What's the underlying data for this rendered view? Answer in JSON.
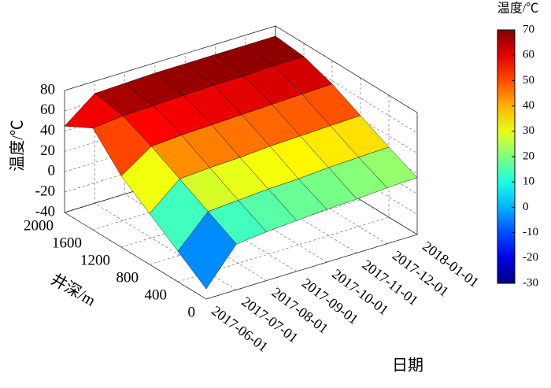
{
  "chart_data": {
    "type": "surface",
    "zlabel": "温度/℃",
    "ylabel": "井深/m",
    "xlabel": "日期",
    "x": [
      "2017-06-01",
      "2017-07-01",
      "2017-08-01",
      "2017-09-01",
      "2017-10-01",
      "2017-11-01",
      "2017-12-01",
      "2018-01-01"
    ],
    "y": [
      0,
      400,
      800,
      1200,
      1600,
      2000
    ],
    "values": [
      [
        -30,
        -10,
        10,
        30,
        60,
        45
      ],
      [
        5,
        20,
        35,
        50,
        63,
        68
      ],
      [
        8,
        22,
        37,
        52,
        64,
        69
      ],
      [
        10,
        24,
        38,
        53,
        65,
        70
      ],
      [
        12,
        25,
        40,
        54,
        66,
        70
      ],
      [
        13,
        27,
        41,
        55,
        66,
        70
      ],
      [
        15,
        28,
        42,
        56,
        67,
        70
      ],
      [
        16,
        29,
        43,
        57,
        67,
        70
      ]
    ],
    "ylim": [
      0,
      2000
    ],
    "yticks": [
      0,
      400,
      800,
      1200,
      1600,
      2000
    ],
    "zlim": [
      -40,
      80
    ],
    "zticks": [
      -40,
      -20,
      0,
      20,
      40,
      60,
      80
    ],
    "colormap": "jet",
    "colorbar": {
      "label": "温度/℃",
      "clim": [
        -30,
        70
      ],
      "ticks": [
        -30,
        -20,
        -10,
        0,
        10,
        20,
        30,
        40,
        50,
        60,
        70
      ]
    },
    "grid": true
  }
}
